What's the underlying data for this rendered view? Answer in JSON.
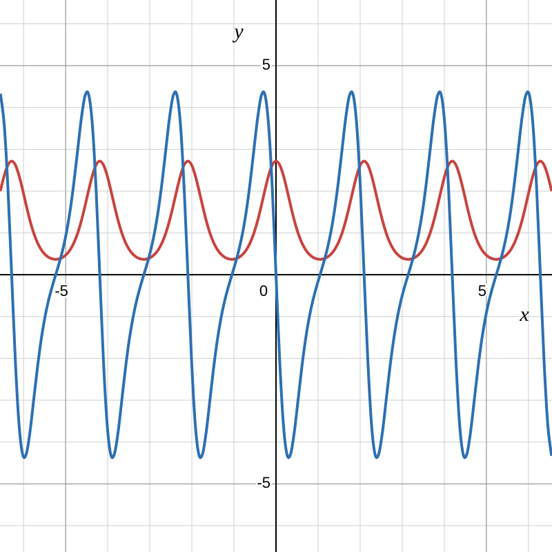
{
  "chart_data": {
    "type": "line",
    "x_label": "x",
    "y_label": "y",
    "xlim": [
      -6.56,
      6.56
    ],
    "ylim": [
      -6.63,
      6.57
    ],
    "xticks": [
      -5,
      0,
      5
    ],
    "yticks": [
      -5,
      5
    ],
    "grid": true,
    "xgrid": [
      -6,
      -5,
      -4,
      -3,
      -2,
      -1,
      0,
      1,
      2,
      3,
      4,
      5,
      6
    ],
    "ygrid": [
      -6,
      -5,
      -4,
      -3,
      -2,
      -1,
      0,
      1,
      2,
      3,
      4,
      5,
      6
    ],
    "x": [
      -6.545,
      -6.458,
      -6.37,
      -6.283,
      -6.196,
      -6.109,
      -6.021,
      -5.934,
      -5.847,
      -5.76,
      -5.672,
      -5.585,
      -5.498,
      -5.411,
      -5.323,
      -5.236,
      -5.149,
      -5.061,
      -4.974,
      -4.887,
      -4.8,
      -4.712,
      -4.625,
      -4.538,
      -4.451,
      -4.363,
      -4.276,
      -4.189,
      -4.102,
      -4.014,
      -3.927,
      -3.84,
      -3.752,
      -3.665,
      -3.578,
      -3.491,
      -3.403,
      -3.316,
      -3.229,
      -3.142,
      -3.054,
      -2.967,
      -2.88,
      -2.793,
      -2.705,
      -2.618,
      -2.531,
      -2.443,
      -2.356,
      -2.269,
      -2.182,
      -2.094,
      -2.007,
      -1.92,
      -1.833,
      -1.745,
      -1.658,
      -1.571,
      -1.484,
      -1.396,
      -1.309,
      -1.222,
      -1.134,
      -1.047,
      -0.96,
      -0.873,
      -0.785,
      -0.698,
      -0.611,
      -0.524,
      -0.436,
      -0.349,
      -0.262,
      -0.175,
      -0.087,
      0,
      0.087,
      0.175,
      0.262,
      0.349,
      0.436,
      0.524,
      0.611,
      0.698,
      0.785,
      0.873,
      0.96,
      1.047,
      1.134,
      1.222,
      1.309,
      1.396,
      1.484,
      1.571,
      1.658,
      1.745,
      1.833,
      1.92,
      2.007,
      2.094,
      2.182,
      2.269,
      2.356,
      2.443,
      2.531,
      2.618,
      2.705,
      2.793,
      2.88,
      2.967,
      3.054,
      3.142,
      3.229,
      3.316,
      3.403,
      3.491,
      3.578,
      3.665,
      3.752,
      3.84,
      3.927,
      4.014,
      4.102,
      4.189,
      4.276,
      4.363,
      4.451,
      4.538,
      4.625,
      4.712,
      4.8,
      4.887,
      4.974,
      5.061,
      5.149,
      5.236,
      5.323,
      5.411,
      5.498,
      5.585,
      5.672,
      5.76,
      5.847,
      5.934,
      6.021,
      6.109,
      6.196,
      6.283,
      6.37,
      6.458,
      6.545
    ],
    "series": [
      {
        "color": "#c74440",
        "values": [
          2.028,
          2.377,
          2.627,
          2.718,
          2.627,
          2.377,
          2.028,
          1.649,
          1.295,
          1,
          0.772,
          0.607,
          0.493,
          0.421,
          0.381,
          0.368,
          0.381,
          0.421,
          0.493,
          0.607,
          0.772,
          1,
          1.295,
          1.649,
          2.028,
          2.377,
          2.627,
          2.718,
          2.627,
          2.377,
          2.028,
          1.649,
          1.295,
          1,
          0.772,
          0.607,
          0.493,
          0.421,
          0.381,
          0.368,
          0.381,
          0.421,
          0.493,
          0.607,
          0.772,
          1,
          1.295,
          1.649,
          2.028,
          2.377,
          2.627,
          2.718,
          2.627,
          2.377,
          2.028,
          1.649,
          1.295,
          1,
          0.772,
          0.607,
          0.493,
          0.421,
          0.381,
          0.368,
          0.381,
          0.421,
          0.493,
          0.607,
          0.772,
          1,
          1.295,
          1.649,
          2.028,
          2.377,
          2.627,
          2.718,
          2.627,
          2.377,
          2.028,
          1.649,
          1.295,
          1,
          0.772,
          0.607,
          0.493,
          0.421,
          0.381,
          0.368,
          0.381,
          0.421,
          0.493,
          0.607,
          0.772,
          1,
          1.295,
          1.649,
          2.028,
          2.377,
          2.627,
          2.718,
          2.627,
          2.377,
          2.028,
          1.649,
          1.295,
          1,
          0.772,
          0.607,
          0.493,
          0.421,
          0.381,
          0.368,
          0.381,
          0.421,
          0.493,
          0.607,
          0.772,
          1,
          1.295,
          1.649,
          2.028,
          2.377,
          2.627,
          2.718,
          2.627,
          2.377,
          2.028,
          1.649,
          1.295,
          1,
          0.772,
          0.607,
          0.493,
          0.421,
          0.381,
          0.368,
          0.381,
          0.421,
          0.493,
          0.607,
          0.772,
          1,
          1.295,
          1.649,
          2.028,
          2.377,
          2.627,
          2.718,
          2.627,
          2.377,
          2.028
        ]
      },
      {
        "color": "#2d70b3",
        "values": [
          4.302,
          3.566,
          2.04,
          0,
          -2.04,
          -3.566,
          -4.302,
          -4.283,
          -3.754,
          -3,
          -2.237,
          -1.576,
          -1.046,
          -0.631,
          -0.296,
          0,
          0.296,
          0.631,
          1.046,
          1.576,
          2.237,
          3,
          3.754,
          4.283,
          4.302,
          3.566,
          2.04,
          0,
          -2.04,
          -3.566,
          -4.302,
          -4.283,
          -3.754,
          -3,
          -2.237,
          -1.576,
          -1.046,
          -0.631,
          -0.296,
          0,
          0.296,
          0.631,
          1.046,
          1.576,
          2.237,
          3,
          3.754,
          4.283,
          4.302,
          3.566,
          2.04,
          0,
          -2.04,
          -3.566,
          -4.302,
          -4.283,
          -3.754,
          -3,
          -2.237,
          -1.576,
          -1.046,
          -0.631,
          -0.296,
          0,
          0.296,
          0.631,
          1.046,
          1.576,
          2.237,
          3,
          3.754,
          4.283,
          4.302,
          3.566,
          2.04,
          0,
          -2.04,
          -3.566,
          -4.302,
          -4.283,
          -3.754,
          -3,
          -2.237,
          -1.576,
          -1.046,
          -0.631,
          -0.296,
          0,
          0.296,
          0.631,
          1.046,
          1.576,
          2.237,
          3,
          3.754,
          4.283,
          4.302,
          3.566,
          2.04,
          0,
          -2.04,
          -3.566,
          -4.302,
          -4.283,
          -3.754,
          -3,
          -2.237,
          -1.576,
          -1.046,
          -0.631,
          -0.296,
          0,
          0.296,
          0.631,
          1.046,
          1.576,
          2.237,
          3,
          3.754,
          4.283,
          4.302,
          3.566,
          2.04,
          0,
          -2.04,
          -3.566,
          -4.302,
          -4.283,
          -3.754,
          -3,
          -2.237,
          -1.576,
          -1.046,
          -0.631,
          -0.296,
          0,
          0.296,
          0.631,
          1.046,
          1.576,
          2.237,
          3,
          3.754,
          4.283,
          4.302,
          3.566,
          2.04,
          0,
          -2.04,
          -3.566,
          -4.302
        ]
      }
    ]
  }
}
